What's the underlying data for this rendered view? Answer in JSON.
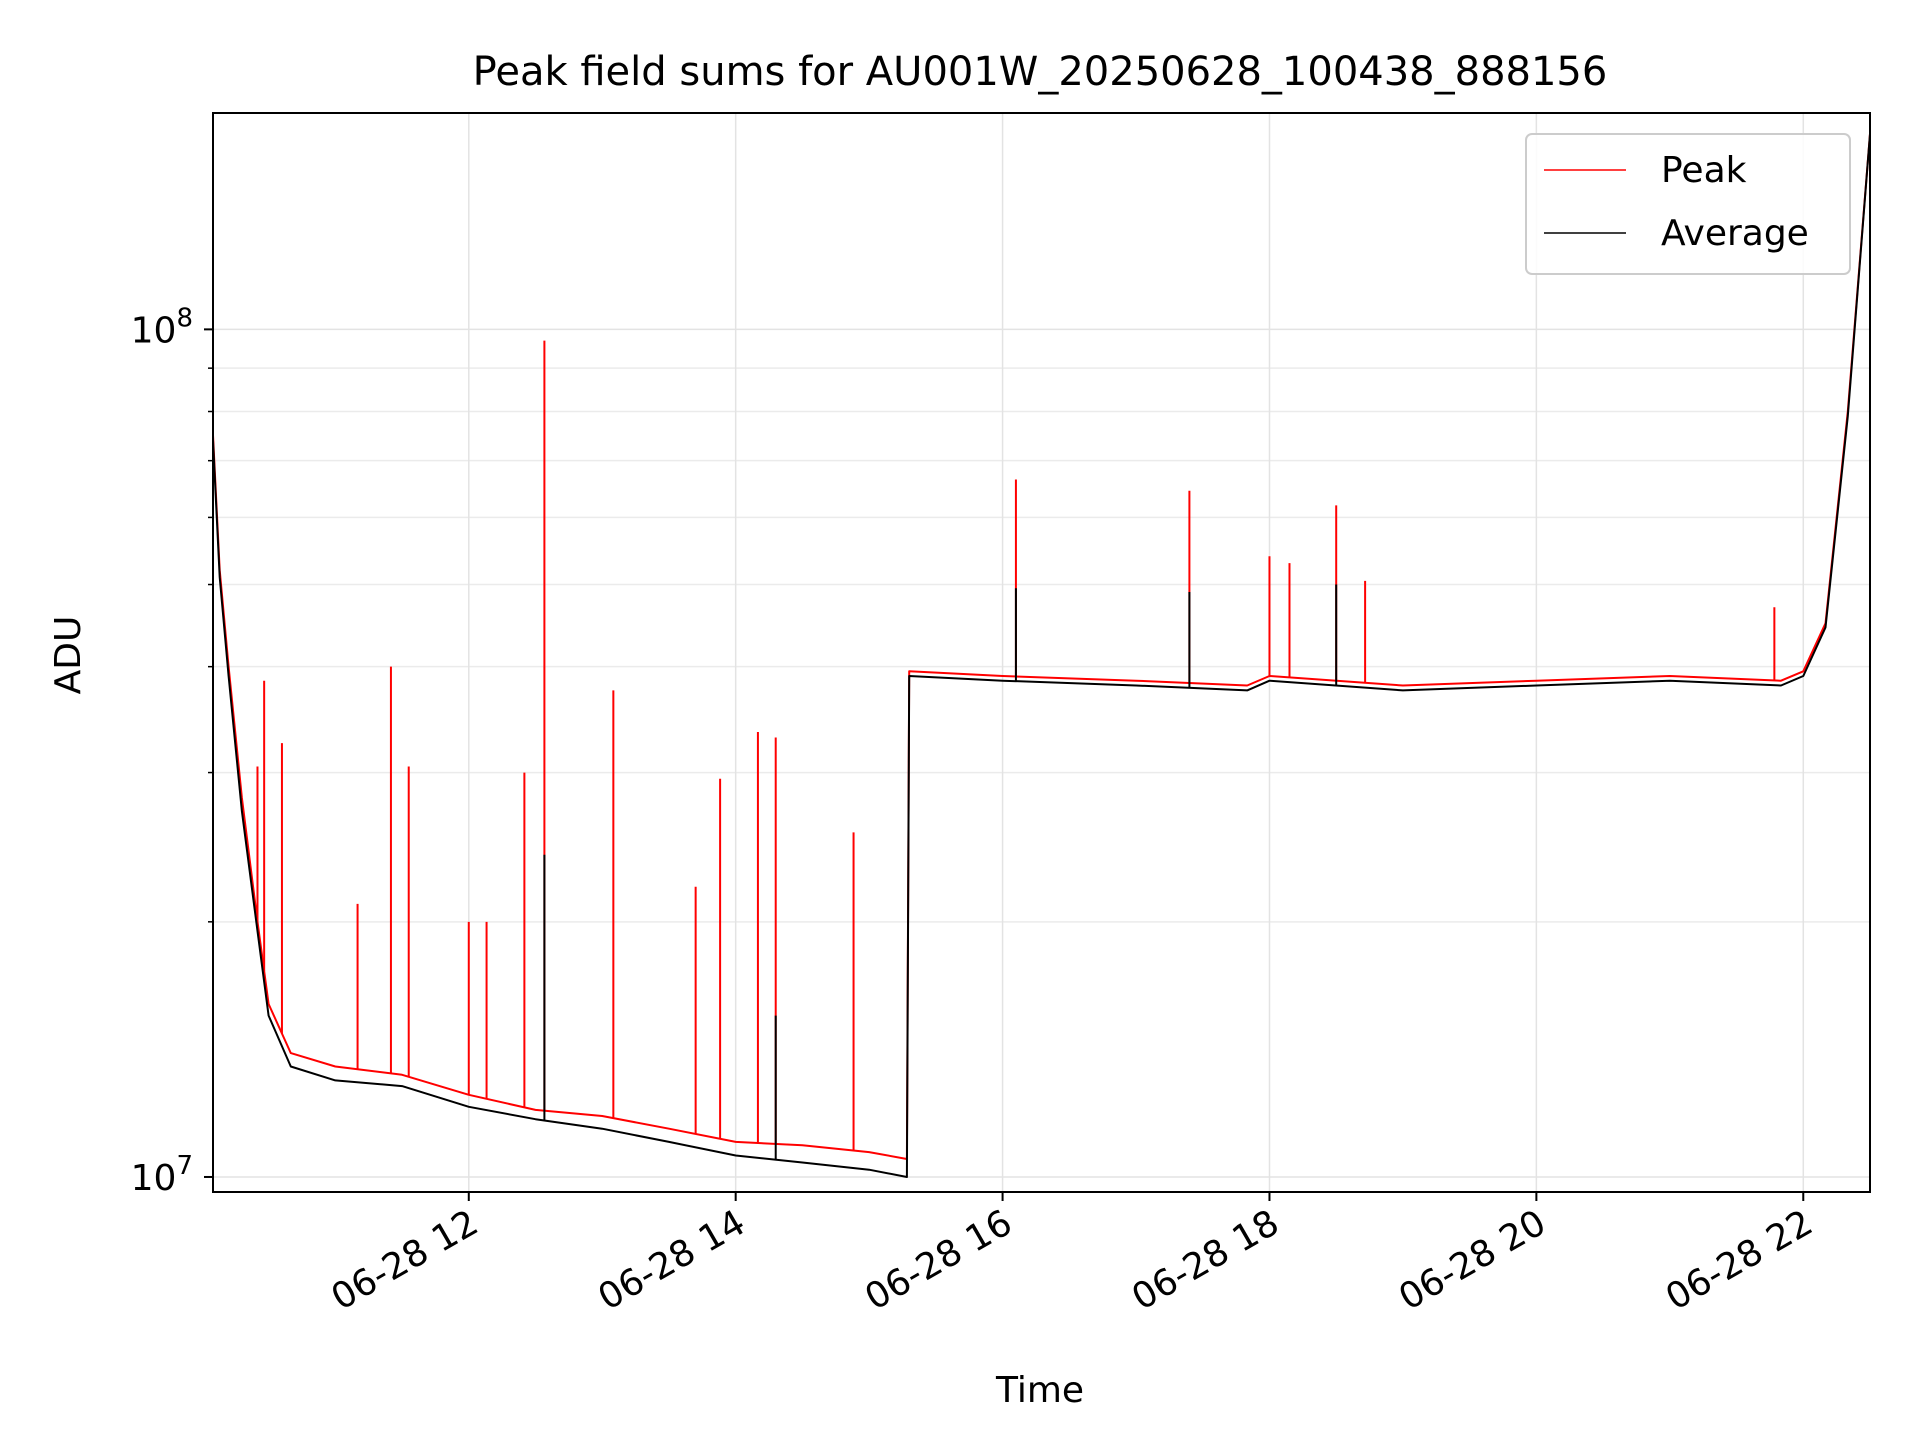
{
  "chart_data": {
    "type": "line",
    "title": "Peak field sums for AU001W_20250628_100438_888156",
    "xlabel": "Time",
    "ylabel": "ADU",
    "yscale": "log",
    "xlim": [
      "2025-06-28 10:05",
      "2025-06-28 22:30"
    ],
    "ylim": [
      9600000,
      180000000
    ],
    "grid": true,
    "legend": {
      "placement": "top-right",
      "entries": [
        "Peak",
        "Average"
      ]
    },
    "x_ticks": [
      "06-28 12",
      "06-28 14",
      "06-28 16",
      "06-28 18",
      "06-28 20",
      "06-28 22"
    ],
    "x_tick_values": [
      "2025-06-28 12:00",
      "2025-06-28 14:00",
      "2025-06-28 16:00",
      "2025-06-28 18:00",
      "2025-06-28 20:00",
      "2025-06-28 22:00"
    ],
    "y_ticks": [
      {
        "label": "10",
        "exponent": "7",
        "value": 10000000
      },
      {
        "label": "10",
        "exponent": "8",
        "value": 100000000
      }
    ],
    "series": [
      {
        "name": "Peak",
        "color": "#ff0000",
        "x": [
          "2025-06-28 10:05",
          "2025-06-28 10:08",
          "2025-06-28 10:12",
          "2025-06-28 10:18",
          "2025-06-28 10:25",
          "2025-06-28 10:30",
          "2025-06-28 10:40",
          "2025-06-28 11:00",
          "2025-06-28 11:30",
          "2025-06-28 12:00",
          "2025-06-28 12:30",
          "2025-06-28 13:00",
          "2025-06-28 13:30",
          "2025-06-28 14:00",
          "2025-06-28 14:30",
          "2025-06-28 15:00",
          "2025-06-28 15:17",
          "2025-06-28 15:18",
          "2025-06-28 16:00",
          "2025-06-28 17:00",
          "2025-06-28 17:50",
          "2025-06-28 18:00",
          "2025-06-28 19:00",
          "2025-06-28 20:00",
          "2025-06-28 21:00",
          "2025-06-28 21:50",
          "2025-06-28 22:00",
          "2025-06-28 22:10",
          "2025-06-28 22:20",
          "2025-06-28 22:30"
        ],
        "values": [
          75000000,
          52000000,
          40000000,
          28000000,
          20000000,
          16000000,
          14000000,
          13500000,
          13200000,
          12500000,
          12000000,
          11800000,
          11400000,
          11000000,
          10900000,
          10700000,
          10500000,
          39500000,
          39000000,
          38500000,
          38000000,
          39000000,
          38000000,
          38500000,
          39000000,
          38500000,
          39500000,
          45000000,
          80000000,
          170000000
        ],
        "spikes": [
          {
            "x": "2025-06-28 10:25",
            "value": 30500000
          },
          {
            "x": "2025-06-28 10:28",
            "value": 38500000
          },
          {
            "x": "2025-06-28 10:36",
            "value": 32500000
          },
          {
            "x": "2025-06-28 11:10",
            "value": 21000000
          },
          {
            "x": "2025-06-28 11:25",
            "value": 40000000
          },
          {
            "x": "2025-06-28 11:33",
            "value": 30500000
          },
          {
            "x": "2025-06-28 12:00",
            "value": 20000000
          },
          {
            "x": "2025-06-28 12:08",
            "value": 20000000
          },
          {
            "x": "2025-06-28 12:25",
            "value": 30000000
          },
          {
            "x": "2025-06-28 12:34",
            "value": 97000000
          },
          {
            "x": "2025-06-28 13:05",
            "value": 37500000
          },
          {
            "x": "2025-06-28 13:42",
            "value": 22000000
          },
          {
            "x": "2025-06-28 13:53",
            "value": 29500000
          },
          {
            "x": "2025-06-28 14:10",
            "value": 33500000
          },
          {
            "x": "2025-06-28 14:18",
            "value": 33000000
          },
          {
            "x": "2025-06-28 14:53",
            "value": 25500000
          },
          {
            "x": "2025-06-28 16:06",
            "value": 66500000
          },
          {
            "x": "2025-06-28 17:24",
            "value": 64500000
          },
          {
            "x": "2025-06-28 18:00",
            "value": 54000000
          },
          {
            "x": "2025-06-28 18:09",
            "value": 53000000
          },
          {
            "x": "2025-06-28 18:30",
            "value": 62000000
          },
          {
            "x": "2025-06-28 18:43",
            "value": 50500000
          },
          {
            "x": "2025-06-28 21:47",
            "value": 47000000
          }
        ]
      },
      {
        "name": "Average",
        "color": "#000000",
        "x": [
          "2025-06-28 10:05",
          "2025-06-28 10:08",
          "2025-06-28 10:12",
          "2025-06-28 10:18",
          "2025-06-28 10:25",
          "2025-06-28 10:30",
          "2025-06-28 10:40",
          "2025-06-28 11:00",
          "2025-06-28 11:30",
          "2025-06-28 12:00",
          "2025-06-28 12:30",
          "2025-06-28 13:00",
          "2025-06-28 13:30",
          "2025-06-28 14:00",
          "2025-06-28 14:30",
          "2025-06-28 15:00",
          "2025-06-28 15:17",
          "2025-06-28 15:18",
          "2025-06-28 16:00",
          "2025-06-28 17:00",
          "2025-06-28 17:50",
          "2025-06-28 18:00",
          "2025-06-28 19:00",
          "2025-06-28 20:00",
          "2025-06-28 21:00",
          "2025-06-28 21:50",
          "2025-06-28 22:00",
          "2025-06-28 22:10",
          "2025-06-28 22:20",
          "2025-06-28 22:30"
        ],
        "values": [
          74000000,
          51000000,
          39000000,
          27000000,
          19500000,
          15500000,
          13500000,
          13000000,
          12800000,
          12100000,
          11700000,
          11400000,
          11000000,
          10600000,
          10400000,
          10200000,
          10000000,
          39000000,
          38500000,
          38000000,
          37500000,
          38500000,
          37500000,
          38000000,
          38500000,
          38000000,
          39000000,
          44500000,
          79000000,
          170000000
        ],
        "spikes": [
          {
            "x": "2025-06-28 12:34",
            "value": 24000000
          },
          {
            "x": "2025-06-28 14:18",
            "value": 15500000
          },
          {
            "x": "2025-06-28 16:06",
            "value": 49500000
          },
          {
            "x": "2025-06-28 17:24",
            "value": 49000000
          },
          {
            "x": "2025-06-28 18:30",
            "value": 50000000
          }
        ]
      }
    ]
  }
}
